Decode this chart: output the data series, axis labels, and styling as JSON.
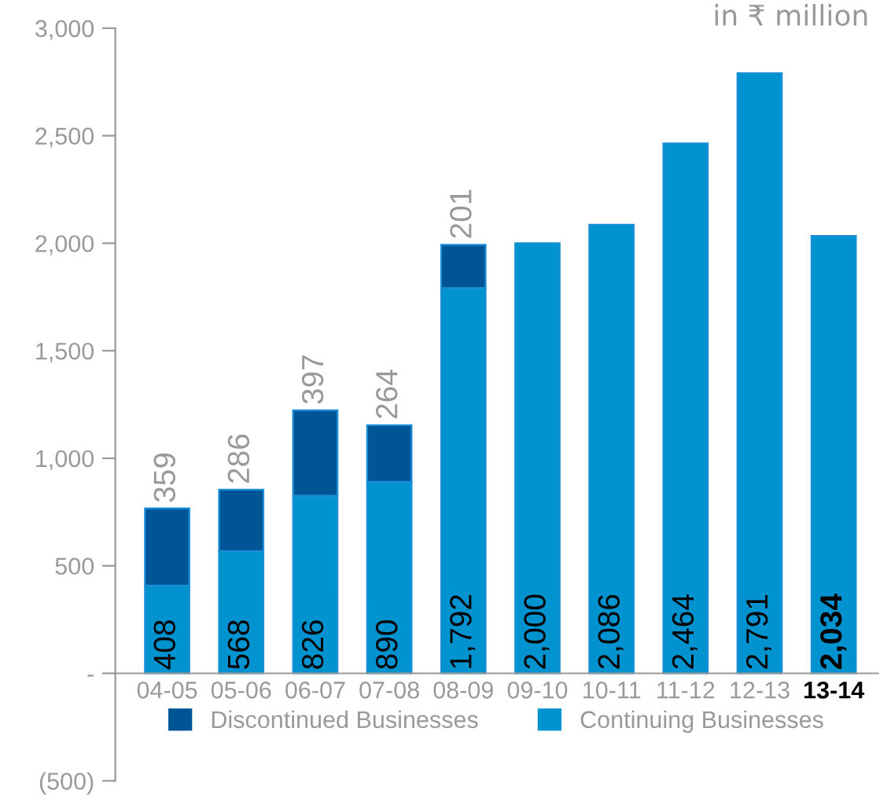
{
  "chart_data": {
    "type": "bar",
    "stacked": true,
    "categories": [
      "04-05",
      "05-06",
      "06-07",
      "07-08",
      "08-09",
      "09-10",
      "10-11",
      "11-12",
      "12-13",
      "13-14"
    ],
    "series": [
      {
        "name": "Continuing Businesses",
        "color": "#0093d0",
        "values": [
          408,
          568,
          826,
          890,
          1792,
          2000,
          2086,
          2464,
          2791,
          2034
        ],
        "value_labels": [
          "408",
          "568",
          "826",
          "890",
          "1,792",
          "2,000",
          "2,086",
          "2,464",
          "2,791",
          "2,034"
        ]
      },
      {
        "name": "Discontinued Businesses",
        "color": "#005596",
        "values": [
          359,
          286,
          397,
          264,
          201,
          null,
          null,
          null,
          null,
          null
        ],
        "value_labels": [
          "359",
          "286",
          "397",
          "264",
          "201",
          null,
          null,
          null,
          null,
          null
        ]
      }
    ],
    "ylim": [
      -500,
      3000
    ],
    "yticks": [
      {
        "value": -500,
        "label": "(500)"
      },
      {
        "value": 0,
        "label": "-"
      },
      500,
      {
        "value": 1000,
        "label": "1,000"
      },
      {
        "value": 1500,
        "label": "1,500"
      },
      {
        "value": 2000,
        "label": "2,000"
      },
      {
        "value": 2500,
        "label": "2,500"
      },
      {
        "value": 3000,
        "label": "3,000"
      }
    ],
    "legend": "bottom",
    "grid": false,
    "annotations": [
      "in ₹ million"
    ]
  }
}
